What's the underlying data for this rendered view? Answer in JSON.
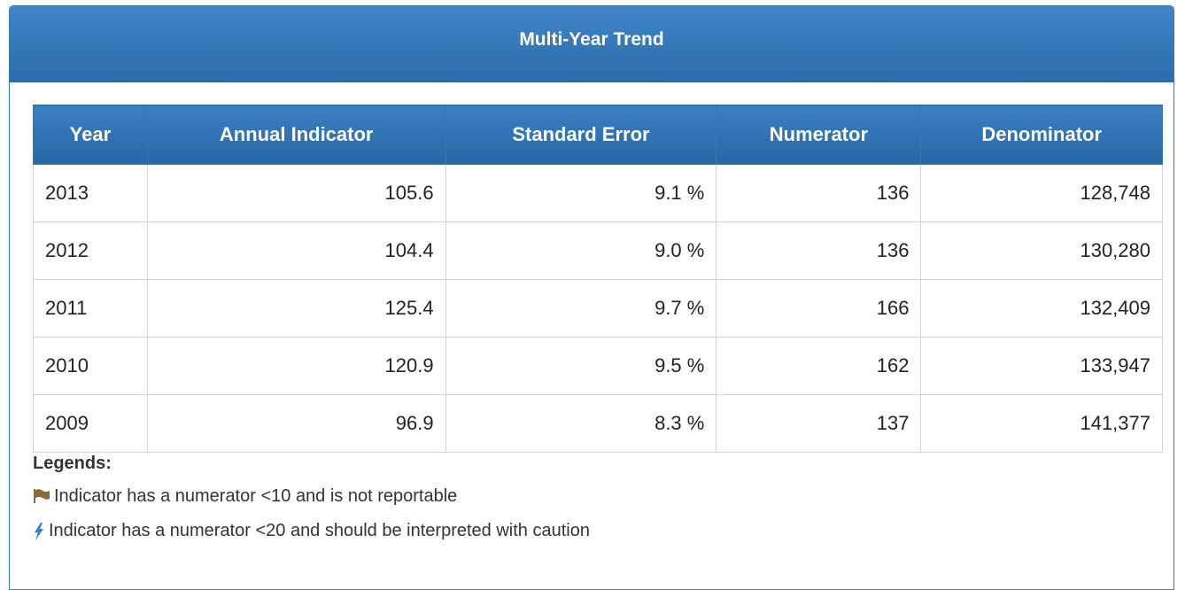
{
  "header": {
    "title": "Multi-Year Trend"
  },
  "table": {
    "columns": [
      "Year",
      "Annual Indicator",
      "Standard Error",
      "Numerator",
      "Denominator"
    ],
    "rows": [
      [
        "2013",
        "105.6",
        "9.1 %",
        "136",
        "128,748"
      ],
      [
        "2012",
        "104.4",
        "9.0 %",
        "136",
        "130,280"
      ],
      [
        "2011",
        "125.4",
        "9.7 %",
        "166",
        "132,409"
      ],
      [
        "2010",
        "120.9",
        "9.5 %",
        "162",
        "133,947"
      ],
      [
        "2009",
        "96.9",
        "8.3 %",
        "137",
        "141,377"
      ]
    ]
  },
  "legends": {
    "title": "Legends:",
    "items": [
      "Indicator has a numerator <10 and is not reportable",
      "Indicator has a numerator <20 and should be interpreted with caution"
    ]
  }
}
